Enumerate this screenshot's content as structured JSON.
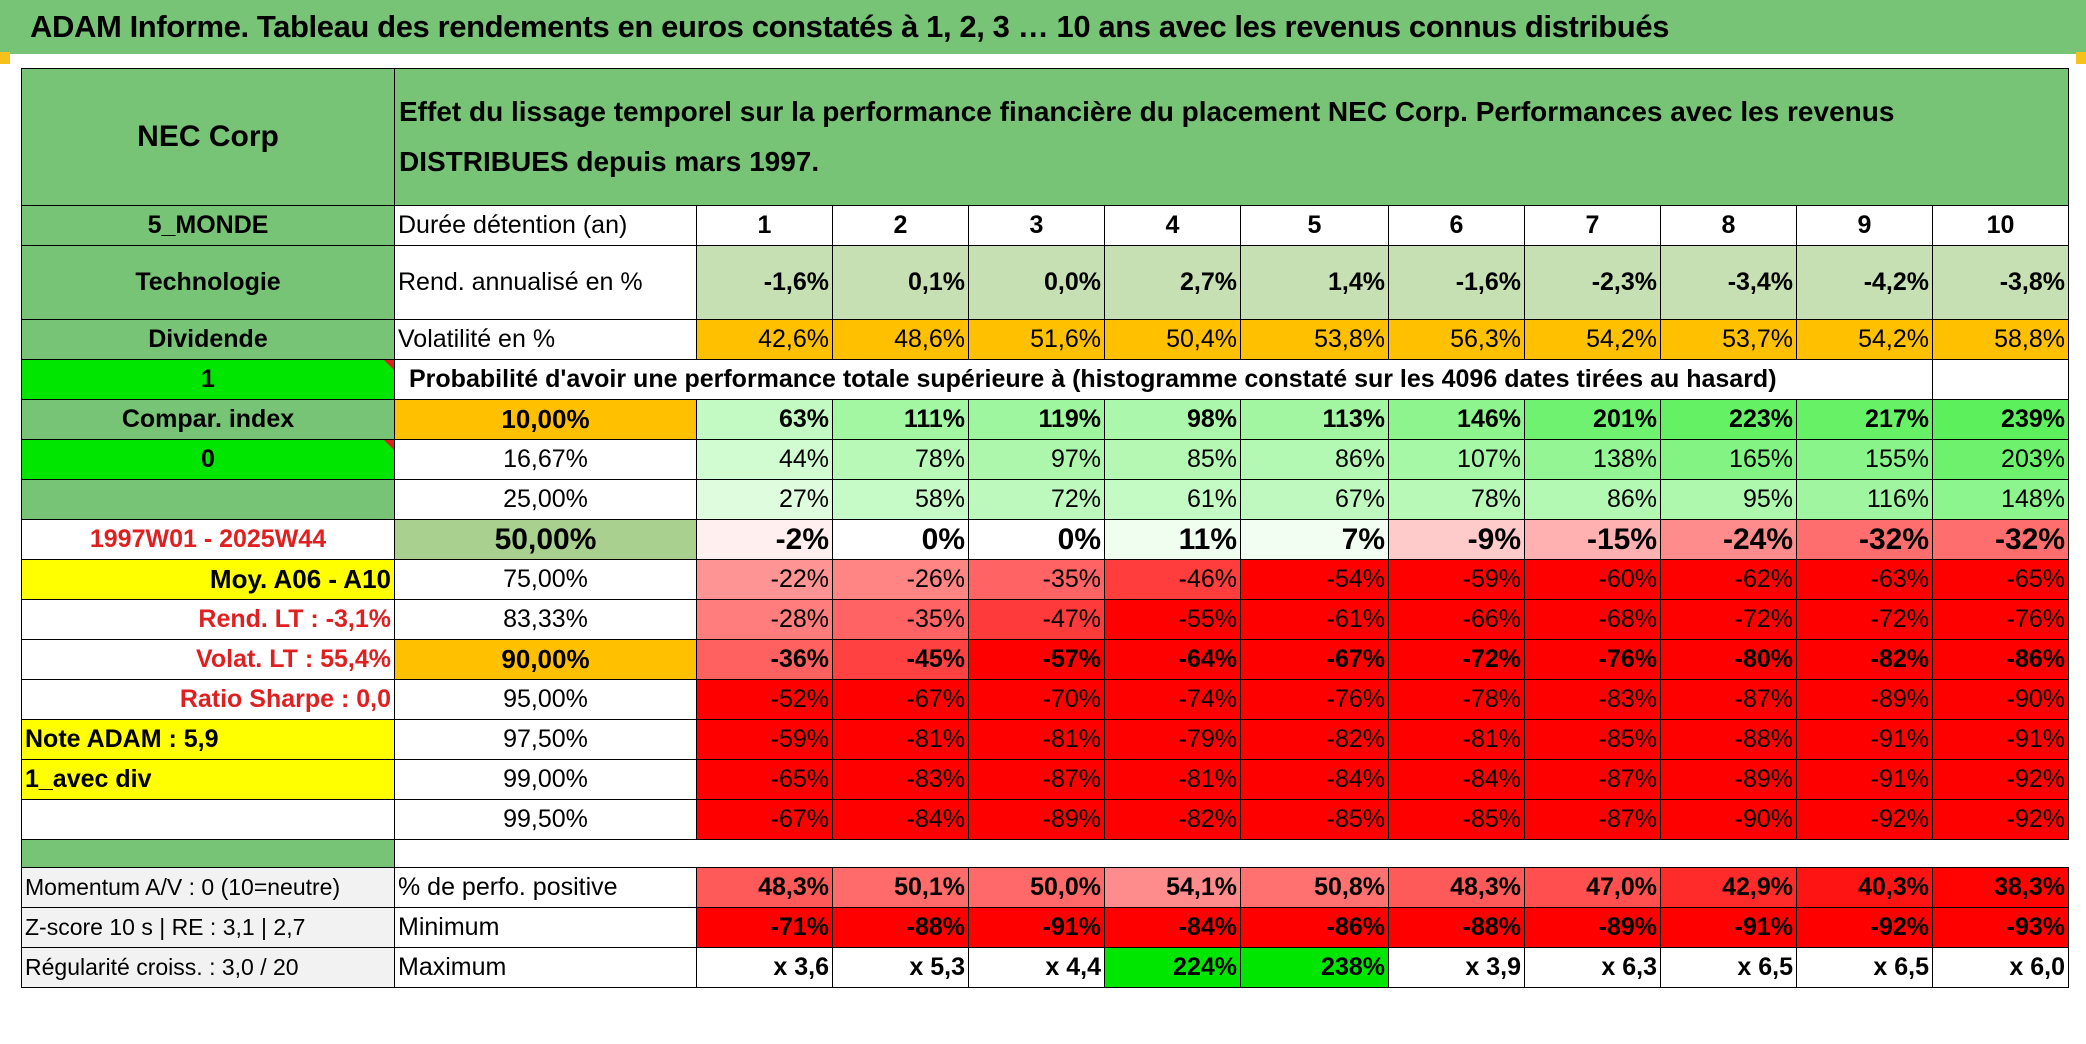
{
  "report_title": "ADAM Informe. Tableau des rendements en euros constatés à 1, 2, 3 … 10 ans avec les revenus connus distribués",
  "side": {
    "company": "NEC Corp",
    "region": "5_MONDE",
    "sector": "Technologie",
    "dividend_label": "Dividende",
    "value_one": "1",
    "compar_index": "Compar. index",
    "value_zero": "0",
    "period": "1997W01 - 2025W44",
    "moy": "Moy. A06 - A10",
    "rend_lt": "Rend. LT :    -3,1%",
    "volat_lt": "Volat. LT :    55,4%",
    "sharpe": "Ratio Sharpe :    0,0",
    "note": "Note ADAM : 5,9",
    "avec_div": "1_avec div",
    "momentum": "Momentum A/V : 0 (10=neutre)",
    "zscore": "Z-score 10 s | RE : 3,1 | 2,7",
    "regularite": "Régularité croiss. : 3,0 / 20"
  },
  "description": "Effet du lissage temporel sur la performance financière du placement NEC Corp. Performances avec les revenus DISTRIBUES depuis mars 1997.",
  "header": {
    "duration_label": "Durée détention (an)",
    "years": [
      "1",
      "2",
      "3",
      "4",
      "5",
      "6",
      "7",
      "8",
      "9",
      "10"
    ]
  },
  "rend_row": {
    "label": "Rend. annualisé en %",
    "values": [
      "-1,6%",
      "0,1%",
      "0,0%",
      "2,7%",
      "1,4%",
      "-1,6%",
      "-2,3%",
      "-3,4%",
      "-4,2%",
      "-3,8%"
    ]
  },
  "vol_row": {
    "label": "Volatilité en %",
    "values": [
      "42,6%",
      "48,6%",
      "51,6%",
      "50,4%",
      "53,8%",
      "56,3%",
      "54,2%",
      "53,7%",
      "54,2%",
      "58,8%"
    ]
  },
  "proba_title": "Probabilité d'avoir une performance totale supérieure à (histogramme constaté sur les 4096 dates tirées au hasard)",
  "prob_rows": [
    {
      "label": "10,00%",
      "values": [
        "63%",
        "111%",
        "119%",
        "98%",
        "113%",
        "146%",
        "201%",
        "223%",
        "217%",
        "239%"
      ]
    },
    {
      "label": "16,67%",
      "values": [
        "44%",
        "78%",
        "97%",
        "85%",
        "86%",
        "107%",
        "138%",
        "165%",
        "155%",
        "203%"
      ]
    },
    {
      "label": "25,00%",
      "values": [
        "27%",
        "58%",
        "72%",
        "61%",
        "67%",
        "78%",
        "86%",
        "95%",
        "116%",
        "148%"
      ]
    },
    {
      "label": "50,00%",
      "values": [
        "-2%",
        "0%",
        "0%",
        "11%",
        "7%",
        "-9%",
        "-15%",
        "-24%",
        "-32%",
        "-32%"
      ]
    },
    {
      "label": "75,00%",
      "values": [
        "-22%",
        "-26%",
        "-35%",
        "-46%",
        "-54%",
        "-59%",
        "-60%",
        "-62%",
        "-63%",
        "-65%"
      ]
    },
    {
      "label": "83,33%",
      "values": [
        "-28%",
        "-35%",
        "-47%",
        "-55%",
        "-61%",
        "-66%",
        "-68%",
        "-72%",
        "-72%",
        "-76%"
      ]
    },
    {
      "label": "90,00%",
      "values": [
        "-36%",
        "-45%",
        "-57%",
        "-64%",
        "-67%",
        "-72%",
        "-76%",
        "-80%",
        "-82%",
        "-86%"
      ]
    },
    {
      "label": "95,00%",
      "values": [
        "-52%",
        "-67%",
        "-70%",
        "-74%",
        "-76%",
        "-78%",
        "-83%",
        "-87%",
        "-89%",
        "-90%"
      ]
    },
    {
      "label": "97,50%",
      "values": [
        "-59%",
        "-81%",
        "-81%",
        "-79%",
        "-82%",
        "-81%",
        "-85%",
        "-88%",
        "-91%",
        "-91%"
      ]
    },
    {
      "label": "99,00%",
      "values": [
        "-65%",
        "-83%",
        "-87%",
        "-81%",
        "-84%",
        "-84%",
        "-87%",
        "-89%",
        "-91%",
        "-92%"
      ]
    },
    {
      "label": "99,50%",
      "values": [
        "-67%",
        "-84%",
        "-89%",
        "-82%",
        "-85%",
        "-85%",
        "-87%",
        "-90%",
        "-92%",
        "-92%"
      ]
    }
  ],
  "pos_row": {
    "label": "% de perfo. positive",
    "values": [
      "48,3%",
      "50,1%",
      "50,0%",
      "54,1%",
      "50,8%",
      "48,3%",
      "47,0%",
      "42,9%",
      "40,3%",
      "38,3%"
    ]
  },
  "min_row": {
    "label": "Minimum",
    "values": [
      "-71%",
      "-88%",
      "-91%",
      "-84%",
      "-86%",
      "-88%",
      "-89%",
      "-91%",
      "-92%",
      "-93%"
    ]
  },
  "max_row": {
    "label": "Maximum",
    "values": [
      "x 3,6",
      "x 5,3",
      "x 4,4",
      "224%",
      "238%",
      "x 3,9",
      "x 6,3",
      "x 6,5",
      "x 6,5",
      "x 6,0"
    ]
  },
  "colors": {
    "header_green": "#77c477",
    "bright_green": "#00e600",
    "yellow": "#ffff00",
    "orange": "#ffc000",
    "red": "#ff0000",
    "light_green": "#c6e0b4"
  }
}
